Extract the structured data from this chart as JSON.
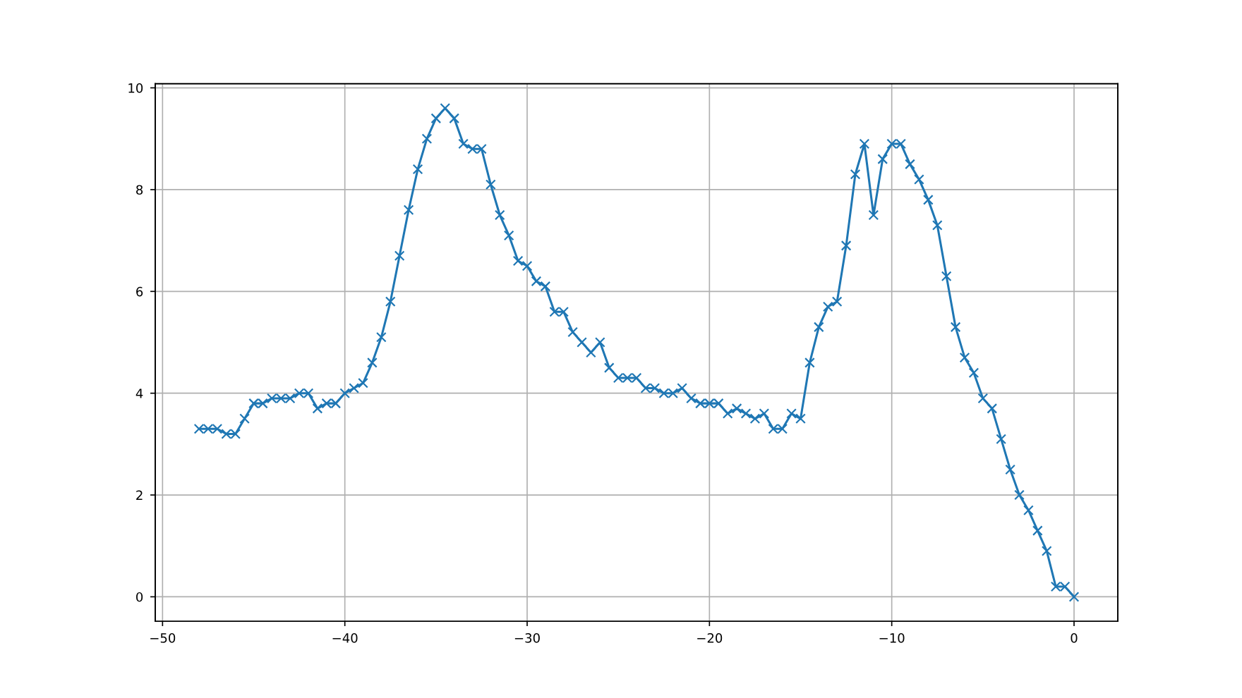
{
  "chart_data": {
    "type": "line",
    "x": [
      -48,
      -47.5,
      -47,
      -46.5,
      -46,
      -45.5,
      -45,
      -44.5,
      -44,
      -43.5,
      -43,
      -42.5,
      -42,
      -41.5,
      -41,
      -40.5,
      -40,
      -39.5,
      -39,
      -38.5,
      -38,
      -37.5,
      -37,
      -36.5,
      -36,
      -35.5,
      -35,
      -34.5,
      -34,
      -33.5,
      -33,
      -32.5,
      -32,
      -31.5,
      -31,
      -30.5,
      -30,
      -29.5,
      -29,
      -28.5,
      -28,
      -27.5,
      -27,
      -26.5,
      -26,
      -25.5,
      -25,
      -24.5,
      -24,
      -23.5,
      -23,
      -22.5,
      -22,
      -21.5,
      -21,
      -20.5,
      -20,
      -19.5,
      -19,
      -18.5,
      -18,
      -17.5,
      -17,
      -16.5,
      -16,
      -15.5,
      -15,
      -14.5,
      -14,
      -13.5,
      -13,
      -12.5,
      -12,
      -11.5,
      -11,
      -10.5,
      -10,
      -9.5,
      -9,
      -8.5,
      -8,
      -7.5,
      -7,
      -6.5,
      -6,
      -5.5,
      -5,
      -4.5,
      -4,
      -3.5,
      -3,
      -2.5,
      -2,
      -1.5,
      -1,
      -0.5,
      0
    ],
    "series": [
      {
        "color": "#1f77b4",
        "values": [
          3.3,
          3.3,
          3.3,
          3.2,
          3.2,
          3.5,
          3.8,
          3.8,
          3.9,
          3.9,
          3.9,
          4.0,
          4.0,
          3.7,
          3.8,
          3.8,
          4.0,
          4.1,
          4.2,
          4.6,
          5.1,
          5.8,
          6.7,
          7.6,
          8.4,
          9.0,
          9.4,
          9.6,
          9.4,
          8.9,
          8.8,
          8.8,
          8.1,
          7.5,
          7.1,
          6.6,
          6.5,
          6.2,
          6.1,
          5.6,
          5.6,
          5.2,
          5.0,
          4.8,
          5.0,
          4.5,
          4.3,
          4.3,
          4.3,
          4.1,
          4.1,
          4.0,
          4.0,
          4.1,
          3.9,
          3.8,
          3.8,
          3.8,
          3.6,
          3.7,
          3.6,
          3.5,
          3.6,
          3.3,
          3.3,
          3.6,
          3.5,
          4.6,
          5.3,
          5.7,
          5.8,
          6.9,
          8.3,
          8.9,
          7.5,
          8.6,
          8.9,
          8.9,
          8.5,
          8.2,
          7.8,
          7.3,
          6.3,
          5.3,
          4.7,
          4.4,
          3.9,
          3.7,
          3.1,
          2.5,
          2.0,
          1.7,
          1.3,
          0.9,
          0.2,
          0.2,
          0.0
        ]
      }
    ],
    "xlim": [
      -50.4,
      2.4
    ],
    "ylim": [
      -0.48,
      10.08
    ],
    "xticks": [
      -50,
      -40,
      -30,
      -20,
      -10,
      0
    ],
    "yticks": [
      0,
      2,
      4,
      6,
      8,
      10
    ],
    "grid": true,
    "marker": "cross",
    "line_style": "solid"
  }
}
